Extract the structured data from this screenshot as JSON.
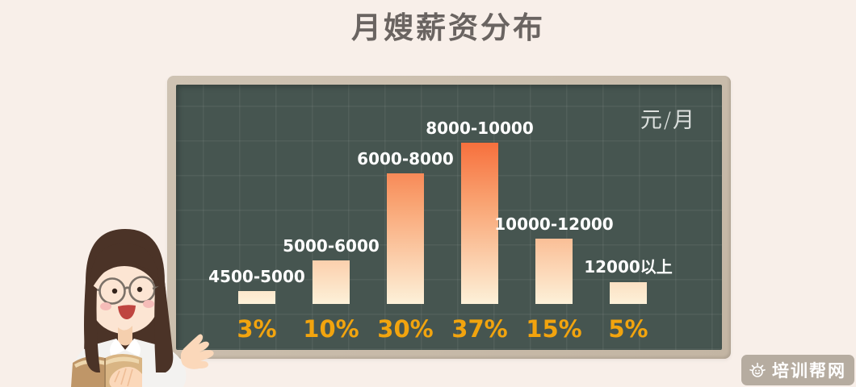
{
  "page": {
    "background": "#f8efe9"
  },
  "title": {
    "text": "月嫂薪资分布",
    "color": "#6a6461"
  },
  "board": {
    "frame_color": "#c9bcac",
    "surface_color": "#465550",
    "unit_label": "元/月"
  },
  "chart_data": {
    "type": "bar",
    "title": "月嫂薪资分布",
    "unit_label": "元/月",
    "categories": [
      "4500-5000",
      "5000-6000",
      "6000-8000",
      "8000-10000",
      "10000-12000",
      "12000以上"
    ],
    "values": [
      3,
      10,
      30,
      37,
      15,
      5
    ],
    "value_labels": [
      "3%",
      "10%",
      "30%",
      "37%",
      "15%",
      "5%"
    ],
    "value_unit": "%",
    "ylim": [
      0,
      40
    ],
    "grid": true,
    "legend": false,
    "category_label_position": "above-bar",
    "value_label_position": "below-baseline",
    "colors": {
      "bar_gradient_top": "#f7703d",
      "bar_gradient_mid": "#f9a473",
      "bar_gradient_bottom": "#fdf1d9",
      "category_label": "#ffffff",
      "value_label": "#f2a40e",
      "grid_line": "rgba(255,255,255,0.06)"
    }
  },
  "illustration": {
    "name": "teacher-presenting",
    "description": "cartoon woman teacher with glasses holding a book, gesturing at blackboard"
  },
  "watermark": {
    "text": "培训帮网",
    "icon": "sun-face-icon"
  }
}
